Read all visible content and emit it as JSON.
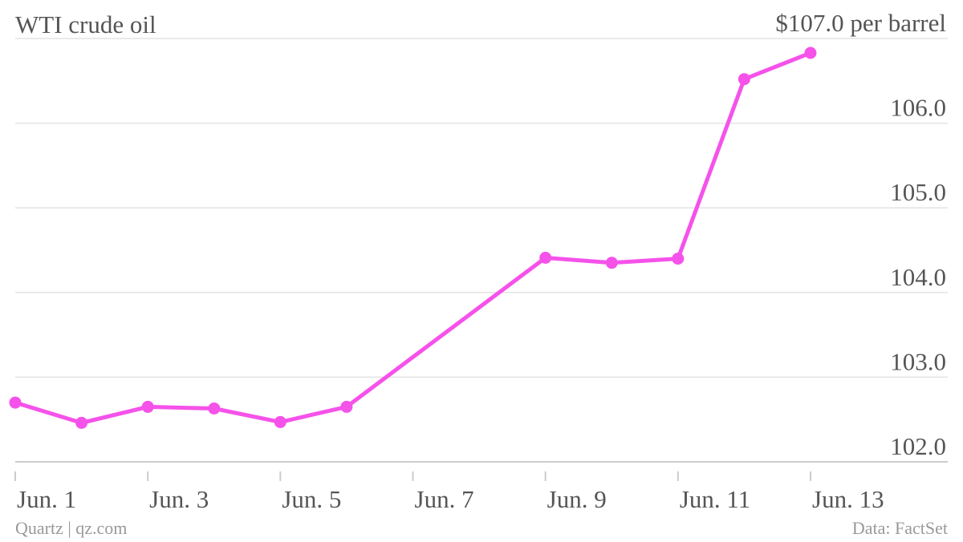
{
  "header": {
    "title": "WTI crude oil"
  },
  "footer": {
    "credit": "Quartz | qz.com",
    "source": "Data: FactSet"
  },
  "colors": {
    "series": "#f552ea",
    "grid": "#e3e3e3",
    "axis": "#cccccc",
    "text": "#555555",
    "muted": "#999999"
  },
  "chart_data": {
    "type": "line",
    "title": "WTI crude oil",
    "xlabel": "",
    "ylabel": "",
    "y_unit_label": "$107.0 per barrel",
    "ylim": [
      101.8,
      107.0
    ],
    "xlim": [
      "2013-06-01",
      "2013-06-13"
    ],
    "grid": true,
    "x_ticks": [
      "Jun. 1",
      "Jun. 3",
      "Jun. 5",
      "Jun. 7",
      "Jun. 9",
      "Jun. 11",
      "Jun. 13"
    ],
    "y_ticks": [
      "102.0",
      "103.0",
      "104.0",
      "105.0",
      "106.0",
      "$107.0 per barrel"
    ],
    "series": [
      {
        "x": [
          "2013-06-01",
          "2013-06-02",
          "2013-06-03",
          "2013-06-04",
          "2013-06-05",
          "2013-06-06",
          "2013-06-09",
          "2013-06-10",
          "2013-06-11",
          "2013-06-12",
          "2013-06-13"
        ],
        "values": [
          102.7,
          102.46,
          102.65,
          102.63,
          102.47,
          102.65,
          104.41,
          104.35,
          104.4,
          106.52,
          106.83
        ]
      }
    ]
  }
}
